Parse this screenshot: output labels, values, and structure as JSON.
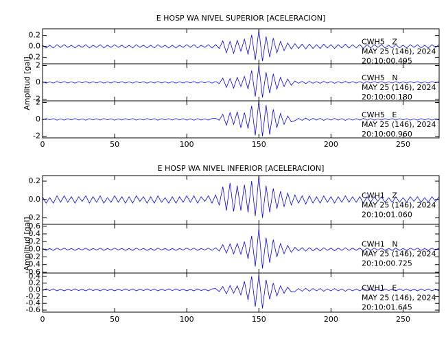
{
  "chart_data": [
    {
      "type": "line",
      "title": "E HOSP WA NIVEL SUPERIOR [ACELERACION]",
      "ylabel": "Amplitud [gal]",
      "xlim": [
        0,
        275
      ],
      "xticks": [
        0,
        50,
        100,
        150,
        200,
        250
      ],
      "x": [
        0,
        2.5,
        5,
        7.5,
        10,
        12.5,
        15,
        17.5,
        20,
        22.5,
        25,
        27.5,
        30,
        32.5,
        35,
        37.5,
        40,
        42.5,
        45,
        47.5,
        50,
        52.5,
        55,
        57.5,
        60,
        62.5,
        65,
        67.5,
        70,
        72.5,
        75,
        77.5,
        80,
        82.5,
        85,
        87.5,
        90,
        92.5,
        95,
        97.5,
        100,
        102.5,
        105,
        107.5,
        110,
        112.5,
        115,
        117.5,
        120,
        122.5,
        125,
        127.5,
        130,
        132.5,
        135,
        137.5,
        140,
        142.5,
        145,
        147.5,
        150,
        152.5,
        155,
        157.5,
        160,
        162.5,
        165,
        167.5,
        170,
        172.5,
        175,
        177.5,
        180,
        182.5,
        185,
        187.5,
        190,
        192.5,
        195,
        197.5,
        200,
        202.5,
        205,
        207.5,
        210,
        212.5,
        215,
        217.5,
        220,
        222.5,
        225,
        227.5,
        230,
        232.5,
        235,
        237.5,
        240,
        242.5,
        245,
        247.5,
        250,
        252.5,
        255,
        257.5,
        260,
        262.5,
        265,
        267.5,
        270,
        272.5,
        275
      ],
      "traces": [
        {
          "station": "CWH5   Z",
          "date": "MAY 25 (146), 2024",
          "time": "20:10:00.495",
          "color": "#0000ff",
          "ylim": [
            -0.32,
            0.32
          ],
          "yticks": [
            0.2,
            {
              "value": 0,
              "label": "0.0"
            },
            -0.2
          ],
          "values": [
            0.02,
            -0.03,
            0.02,
            -0.03,
            0.03,
            -0.02,
            0.03,
            -0.02,
            0.02,
            -0.03,
            0.02,
            -0.02,
            0.03,
            -0.03,
            0.02,
            -0.02,
            0.03,
            -0.03,
            0.02,
            -0.02,
            0.03,
            -0.02,
            0.02,
            -0.03,
            0.02,
            -0.03,
            0.03,
            -0.02,
            0.02,
            -0.03,
            0.02,
            -0.03,
            0.03,
            -0.02,
            0.02,
            -0.03,
            0.02,
            -0.03,
            0.02,
            -0.02,
            0.03,
            -0.02,
            0.03,
            -0.03,
            0.02,
            -0.02,
            0.03,
            -0.03,
            0.03,
            -0.04,
            0.1,
            -0.12,
            0.09,
            -0.13,
            0.11,
            -0.09,
            0.13,
            -0.15,
            0.21,
            -0.25,
            0.3,
            -0.27,
            0.18,
            -0.2,
            0.15,
            -0.12,
            0.09,
            -0.08,
            0.06,
            -0.05,
            0.05,
            -0.04,
            0.04,
            -0.05,
            0.04,
            -0.04,
            0.03,
            -0.04,
            0.04,
            -0.03,
            0.03,
            -0.04,
            0.03,
            -0.03,
            0.04,
            -0.03,
            0.03,
            -0.03,
            0.03,
            -0.04,
            0.03,
            -0.03,
            0.03,
            -0.02,
            0.03,
            -0.03,
            0.02,
            -0.03,
            0.03,
            -0.03,
            0.02,
            -0.03,
            0.03,
            -0.02,
            0.03,
            -0.03,
            0.02,
            -0.03,
            0.03,
            -0.02,
            0.03
          ]
        },
        {
          "station": "CWH5   N",
          "date": "MAY 25 (146), 2024",
          "time": "20:10:00.180",
          "color": "#0000ff",
          "ylim": [
            -2.2,
            2.2
          ],
          "yticks": [
            2,
            0,
            -2
          ],
          "values": [
            0.08,
            -0.1,
            0.06,
            -0.09,
            0.1,
            -0.07,
            0.09,
            -0.08,
            0.07,
            -0.1,
            0.08,
            -0.06,
            0.1,
            -0.09,
            0.07,
            -0.08,
            0.09,
            -0.1,
            0.06,
            -0.08,
            0.1,
            -0.07,
            0.08,
            -0.09,
            0.07,
            -0.1,
            0.09,
            -0.06,
            0.08,
            -0.1,
            0.07,
            -0.09,
            0.1,
            -0.08,
            0.06,
            -0.09,
            0.08,
            -0.1,
            0.07,
            -0.08,
            0.09,
            -0.07,
            0.1,
            -0.09,
            0.08,
            -0.06,
            0.09,
            -0.1,
            0.1,
            -0.15,
            0.5,
            -0.6,
            0.45,
            -0.7,
            0.6,
            -0.5,
            0.7,
            -0.8,
            1.4,
            -1.7,
            2,
            -1.8,
            1.2,
            -1.3,
            1,
            -0.8,
            0.6,
            -0.5,
            0.4,
            -0.35,
            0.15,
            -0.12,
            0.12,
            -0.15,
            0.12,
            -0.12,
            0.09,
            -0.12,
            0.12,
            -0.09,
            0.09,
            -0.12,
            0.09,
            -0.09,
            0.12,
            -0.09,
            0.09,
            -0.09,
            0.09,
            -0.12,
            0.09,
            -0.09,
            0.09,
            -0.06,
            0.09,
            -0.09,
            0.06,
            -0.09,
            0.09,
            -0.09,
            0.06,
            -0.09,
            0.09,
            -0.06,
            0.09,
            -0.09,
            0.06,
            -0.09,
            0.09,
            -0.06,
            0.09
          ]
        },
        {
          "station": "CWH5   E",
          "date": "MAY 25 (146), 2024",
          "time": "20:10:00.960",
          "color": "#0000ff",
          "ylim": [
            -2.2,
            2.2
          ],
          "yticks": [
            2,
            0,
            -2
          ],
          "values": [
            -0.08,
            0.1,
            -0.06,
            0.09,
            -0.1,
            0.07,
            -0.09,
            0.08,
            -0.07,
            0.1,
            -0.08,
            0.06,
            -0.1,
            0.09,
            -0.07,
            0.08,
            -0.09,
            0.1,
            -0.06,
            0.08,
            -0.1,
            0.07,
            -0.08,
            0.09,
            -0.07,
            0.1,
            -0.09,
            0.06,
            -0.08,
            0.1,
            -0.07,
            0.09,
            -0.1,
            0.08,
            -0.06,
            0.09,
            -0.08,
            0.1,
            -0.07,
            0.08,
            -0.09,
            0.07,
            -0.1,
            0.09,
            -0.08,
            0.06,
            -0.09,
            0.1,
            0.12,
            -0.1,
            0.6,
            -0.7,
            0.8,
            -0.6,
            0.9,
            -1,
            0.8,
            -1.1,
            1.6,
            -1.9,
            2.2,
            -2,
            1.7,
            -1.8,
            1.2,
            -1,
            0.7,
            -0.6,
            0.4,
            -0.3,
            -0.15,
            0.12,
            -0.12,
            0.15,
            -0.12,
            0.12,
            -0.09,
            0.12,
            -0.12,
            0.09,
            -0.09,
            0.12,
            -0.09,
            0.09,
            -0.12,
            0.09,
            -0.09,
            0.09,
            -0.09,
            0.12,
            -0.09,
            0.09,
            -0.09,
            0.06,
            -0.09,
            0.09,
            -0.06,
            0.09,
            -0.09,
            0.09,
            -0.06,
            0.09,
            -0.09,
            0.06,
            -0.09,
            0.09,
            -0.06,
            0.09,
            -0.09,
            0.06,
            -0.09
          ]
        }
      ]
    },
    {
      "type": "line",
      "title": "E HOSP WA NIVEL INFERIOR [ACELERACION]",
      "ylabel": "Amplitud [gal]",
      "xlim": [
        0,
        275
      ],
      "xticks": [
        0,
        50,
        100,
        150,
        200,
        250
      ],
      "x": [
        0,
        2.5,
        5,
        7.5,
        10,
        12.5,
        15,
        17.5,
        20,
        22.5,
        25,
        27.5,
        30,
        32.5,
        35,
        37.5,
        40,
        42.5,
        45,
        47.5,
        50,
        52.5,
        55,
        57.5,
        60,
        62.5,
        65,
        67.5,
        70,
        72.5,
        75,
        77.5,
        80,
        82.5,
        85,
        87.5,
        90,
        92.5,
        95,
        97.5,
        100,
        102.5,
        105,
        107.5,
        110,
        112.5,
        115,
        117.5,
        120,
        122.5,
        125,
        127.5,
        130,
        132.5,
        135,
        137.5,
        140,
        142.5,
        145,
        147.5,
        150,
        152.5,
        155,
        157.5,
        160,
        162.5,
        165,
        167.5,
        170,
        172.5,
        175,
        177.5,
        180,
        182.5,
        185,
        187.5,
        190,
        192.5,
        195,
        197.5,
        200,
        202.5,
        205,
        207.5,
        210,
        212.5,
        215,
        217.5,
        220,
        222.5,
        225,
        227.5,
        230,
        232.5,
        235,
        237.5,
        240,
        242.5,
        245,
        247.5,
        250,
        252.5,
        255,
        257.5,
        260,
        262.5,
        265,
        267.5,
        270,
        272.5,
        275
      ],
      "traces": [
        {
          "station": "CWH1   Z",
          "date": "MAY 25 (146), 2024",
          "time": "20:10:01.060",
          "color": "#0000ff",
          "ylim": [
            -0.27,
            0.26
          ],
          "yticks": [
            0.2,
            {
              "value": 0,
              "label": "0.0"
            },
            -0.2
          ],
          "values": [
            0.03,
            -0.04,
            0.02,
            -0.04,
            0.04,
            -0.03,
            0.04,
            -0.03,
            0.03,
            -0.04,
            0.03,
            -0.02,
            0.04,
            -0.04,
            0.03,
            -0.03,
            0.04,
            -0.04,
            0.02,
            -0.03,
            0.04,
            -0.03,
            0.03,
            -0.04,
            0.03,
            -0.04,
            0.04,
            -0.02,
            0.03,
            -0.04,
            0.03,
            -0.04,
            0.04,
            -0.03,
            0.02,
            -0.04,
            0.03,
            -0.04,
            0.03,
            -0.03,
            0.04,
            -0.03,
            0.04,
            -0.04,
            0.03,
            -0.02,
            0.04,
            -0.04,
            0.05,
            -0.06,
            0.14,
            -0.12,
            0.18,
            -0.13,
            0.15,
            -0.12,
            0.16,
            -0.14,
            0.2,
            -0.18,
            0.26,
            -0.2,
            0.15,
            -0.14,
            0.12,
            -0.1,
            0.09,
            -0.08,
            0.07,
            -0.06,
            0.05,
            -0.04,
            0.04,
            -0.05,
            0.04,
            -0.04,
            0.03,
            -0.04,
            0.04,
            -0.03,
            0.03,
            -0.04,
            0.03,
            -0.03,
            0.04,
            -0.03,
            0.03,
            -0.03,
            0.03,
            -0.04,
            0.03,
            -0.03,
            0.03,
            -0.02,
            0.03,
            -0.03,
            0.02,
            -0.03,
            0.03,
            -0.03,
            0.02,
            -0.03,
            0.03,
            -0.02,
            0.03,
            -0.03,
            0.02,
            -0.03,
            0.03,
            -0.02,
            0.03
          ]
        },
        {
          "station": "CWH1   N",
          "date": "MAY 25 (146), 2024",
          "time": "20:10:00.725",
          "color": "#0000ff",
          "ylim": [
            -0.62,
            0.65
          ],
          "yticks": [
            0.6,
            0.4,
            0.2,
            {
              "value": 0,
              "label": "0.0"
            },
            -0.2,
            -0.4,
            -0.6
          ],
          "values": [
            0.02,
            -0.03,
            0.02,
            -0.03,
            0.03,
            -0.02,
            0.03,
            -0.02,
            0.02,
            -0.03,
            0.02,
            -0.02,
            0.03,
            -0.03,
            0.02,
            -0.02,
            0.03,
            -0.03,
            0.02,
            -0.02,
            0.03,
            -0.02,
            0.02,
            -0.03,
            0.02,
            -0.03,
            0.03,
            -0.02,
            0.02,
            -0.03,
            0.02,
            -0.03,
            0.03,
            -0.02,
            0.02,
            -0.03,
            0.02,
            -0.03,
            0.02,
            -0.02,
            0.03,
            -0.02,
            0.03,
            -0.03,
            0.02,
            -0.02,
            0.03,
            -0.03,
            0.04,
            -0.05,
            0.12,
            -0.1,
            0.14,
            -0.12,
            0.15,
            -0.13,
            0.2,
            -0.25,
            0.35,
            -0.45,
            0.55,
            -0.5,
            0.3,
            -0.35,
            0.25,
            -0.2,
            0.15,
            -0.12,
            0.1,
            -0.08,
            0.05,
            -0.04,
            0.04,
            -0.05,
            0.04,
            -0.04,
            0.03,
            -0.04,
            0.04,
            -0.03,
            0.03,
            -0.04,
            0.03,
            -0.03,
            0.04,
            -0.03,
            0.03,
            -0.03,
            0.03,
            -0.04,
            0.03,
            -0.03,
            0.03,
            -0.02,
            0.03,
            -0.03,
            0.02,
            -0.03,
            0.03,
            -0.03,
            0.02,
            -0.03,
            0.03,
            -0.02,
            0.03,
            -0.03,
            0.02,
            -0.03,
            0.03,
            -0.02,
            0.03
          ]
        },
        {
          "station": "CWH1   E",
          "date": "MAY 25 (146), 2024",
          "time": "20:10:01.645",
          "color": "#0000ff",
          "ylim": [
            -0.66,
            0.5
          ],
          "yticks": [
            0.4,
            0.2,
            {
              "value": 0,
              "label": "0.0"
            },
            -0.2,
            -0.4,
            -0.6
          ],
          "values": [
            -0.02,
            0.03,
            -0.02,
            0.03,
            -0.03,
            0.02,
            -0.03,
            0.02,
            -0.02,
            0.03,
            -0.02,
            0.02,
            -0.03,
            0.03,
            -0.02,
            0.02,
            -0.03,
            0.03,
            -0.02,
            0.02,
            -0.03,
            0.02,
            -0.02,
            0.03,
            -0.02,
            0.03,
            -0.03,
            0.02,
            -0.02,
            0.03,
            -0.02,
            0.03,
            -0.03,
            0.02,
            -0.02,
            0.03,
            -0.02,
            0.03,
            -0.02,
            0.02,
            -0.03,
            0.02,
            -0.03,
            0.03,
            -0.02,
            0.02,
            -0.03,
            0.03,
            0.04,
            -0.05,
            0.1,
            -0.12,
            0.13,
            -0.1,
            0.12,
            -0.15,
            0.25,
            -0.3,
            0.4,
            -0.5,
            0.45,
            -0.55,
            0.3,
            -0.28,
            0.2,
            -0.18,
            0.12,
            -0.1,
            0.08,
            -0.06,
            -0.05,
            0.04,
            -0.04,
            0.05,
            -0.04,
            0.04,
            -0.03,
            0.04,
            -0.04,
            0.03,
            -0.03,
            0.04,
            -0.03,
            0.03,
            -0.04,
            0.03,
            -0.03,
            0.03,
            -0.03,
            0.04,
            -0.03,
            0.03,
            -0.03,
            0.02,
            -0.03,
            0.03,
            -0.02,
            0.03,
            -0.03,
            0.03,
            -0.02,
            0.03,
            -0.03,
            0.02,
            -0.03,
            0.03,
            -0.02,
            0.03,
            -0.03,
            0.02,
            -0.03
          ]
        }
      ]
    }
  ]
}
